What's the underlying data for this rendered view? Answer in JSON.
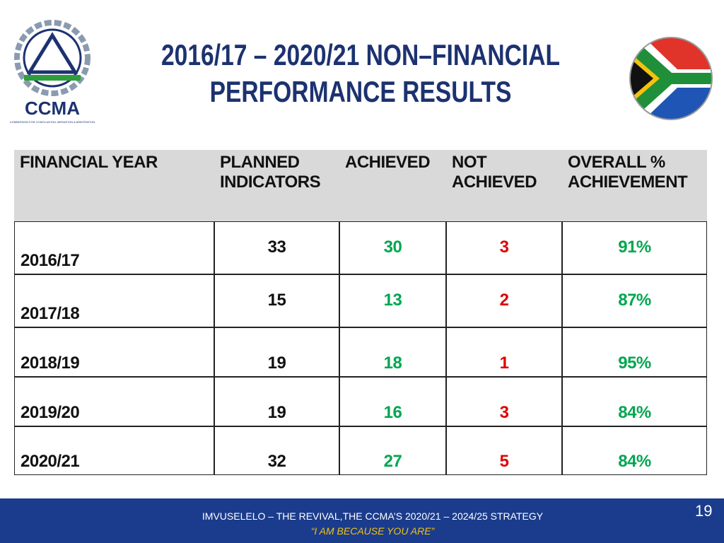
{
  "header": {
    "title_lines": [
      "2016/17 – 2020/21  NON–FINANCIAL",
      "PERFORMANCE RESULTS"
    ],
    "logo_name": "CCMA",
    "logo_subtitle": "COMMISSION FOR CONCILIATION, MEDIATION & ARBITRATION"
  },
  "table": {
    "columns": [
      "FINANCIAL YEAR",
      "PLANNED INDICATORS",
      "ACHIEVED",
      "NOT ACHIEVED",
      "OVERALL % ACHIEVEMENT"
    ],
    "rows": [
      [
        "2016/17",
        "33",
        "30",
        "3",
        "91%"
      ],
      [
        "2017/18",
        "15",
        "13",
        "2",
        "87%"
      ],
      [
        "2018/19",
        "19",
        "18",
        "1",
        "95%"
      ],
      [
        "2019/20",
        "19",
        "16",
        "3",
        "84%"
      ],
      [
        "2020/21",
        "32",
        "27",
        "5",
        "84%"
      ]
    ]
  },
  "footer": {
    "strategy": "IMVUSELELO – THE REVIVAL,THE CCMA’S 2020/21 – 2024/25 STRATEGY",
    "motto": "“I AM BECAUSE YOU ARE”",
    "page_number": "19"
  }
}
